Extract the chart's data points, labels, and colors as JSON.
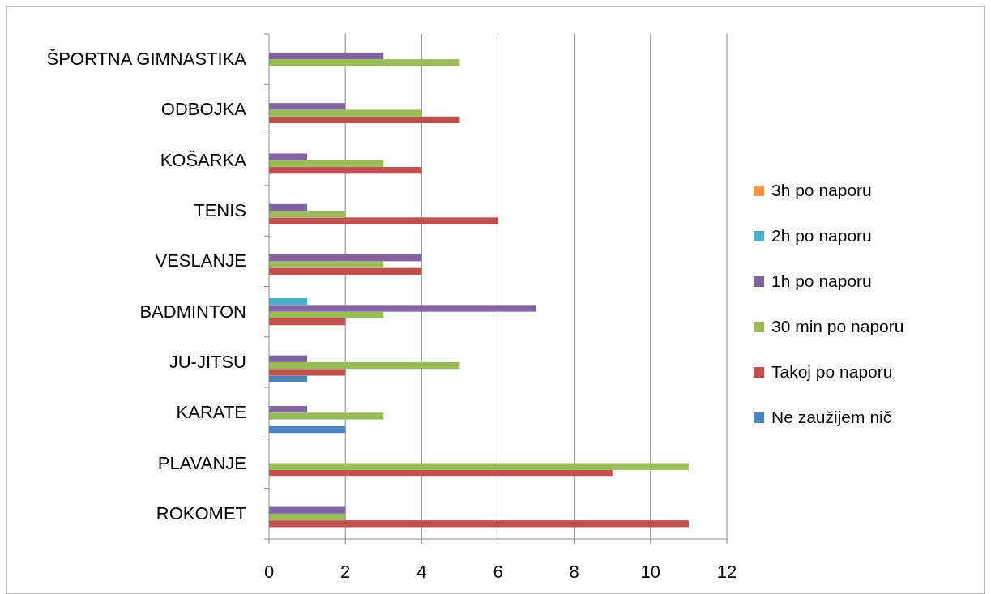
{
  "chart_data": {
    "type": "bar",
    "orientation": "horizontal",
    "categories": [
      "ŠPORTNA GIMNASTIKA",
      "ODBOJKA",
      "KOŠARKA",
      "TENIS",
      "VESLANJE",
      "BADMINTON",
      "JU-JITSU",
      "KARATE",
      "PLAVANJE",
      "ROKOMET"
    ],
    "series": [
      {
        "name": "Ne zaužijem nič",
        "color": "#4f81bd",
        "values": [
          null,
          null,
          null,
          null,
          null,
          null,
          1,
          2,
          null,
          null
        ]
      },
      {
        "name": "Takoj po naporu",
        "color": "#c0504d",
        "values": [
          null,
          5,
          4,
          6,
          4,
          2,
          2,
          null,
          9,
          11
        ]
      },
      {
        "name": "30 min po naporu",
        "color": "#9bbb59",
        "values": [
          5,
          4,
          3,
          2,
          3,
          3,
          5,
          3,
          11,
          2
        ]
      },
      {
        "name": "1h po naporu",
        "color": "#8064a2",
        "values": [
          3,
          2,
          1,
          1,
          4,
          7,
          1,
          1,
          null,
          2
        ]
      },
      {
        "name": "2h po naporu",
        "color": "#4bacc6",
        "values": [
          null,
          null,
          null,
          null,
          null,
          1,
          null,
          null,
          null,
          null
        ]
      },
      {
        "name": "3h po naporu",
        "color": "#f79646",
        "values": [
          null,
          null,
          null,
          null,
          null,
          null,
          null,
          null,
          null,
          null
        ]
      }
    ],
    "xlim": [
      0,
      12
    ],
    "xticks": [
      0,
      2,
      4,
      6,
      8,
      10,
      12
    ],
    "grid": "x",
    "legend": "right"
  }
}
